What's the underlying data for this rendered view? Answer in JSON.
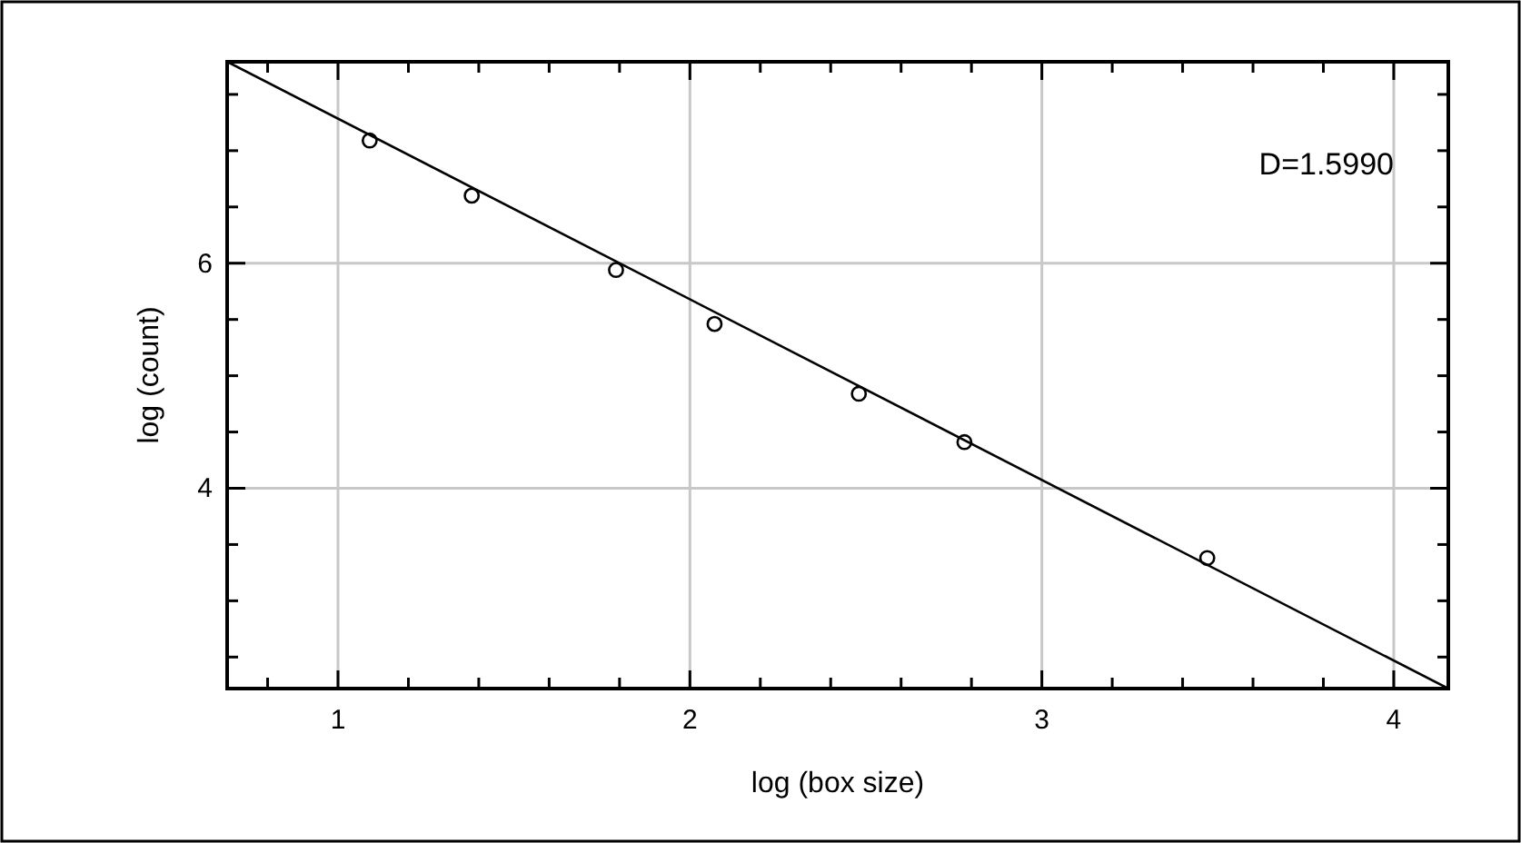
{
  "chart_data": {
    "type": "scatter",
    "xlabel": "log (box size)",
    "ylabel": "log (count)",
    "xlim": [
      0.685,
      4.155
    ],
    "ylim": [
      2.22,
      7.79
    ],
    "xticks": [
      {
        "value": 0.8,
        "label": null
      },
      1,
      {
        "value": 1.2,
        "label": null
      },
      {
        "value": 1.4,
        "label": null
      },
      {
        "value": 1.6,
        "label": null
      },
      {
        "value": 1.8,
        "label": null
      },
      2,
      {
        "value": 2.2,
        "label": null
      },
      {
        "value": 2.4,
        "label": null
      },
      {
        "value": 2.6,
        "label": null
      },
      {
        "value": 2.8,
        "label": null
      },
      3,
      {
        "value": 3.2,
        "label": null
      },
      {
        "value": 3.4,
        "label": null
      },
      {
        "value": 3.6,
        "label": null
      },
      {
        "value": 3.8,
        "label": null
      },
      4
    ],
    "yticks": [
      {
        "value": 2.5,
        "label": null
      },
      {
        "value": 3,
        "label": null
      },
      {
        "value": 3.5,
        "label": null
      },
      4,
      {
        "value": 4.5,
        "label": null
      },
      {
        "value": 5,
        "label": null
      },
      {
        "value": 5.5,
        "label": null
      },
      6,
      {
        "value": 6.5,
        "label": null
      },
      {
        "value": 7,
        "label": null
      },
      {
        "value": 7.5,
        "label": null
      }
    ],
    "grid": true,
    "annotations": [
      "D=1.5990"
    ],
    "series": [
      {
        "color": "#000000",
        "marker": "circle",
        "x": [
          1.09,
          1.38,
          1.79,
          2.07,
          2.48,
          2.78,
          3.47
        ],
        "values": [
          7.09,
          6.6,
          5.94,
          5.46,
          4.84,
          4.41,
          3.38
        ]
      },
      {
        "type": "line",
        "color": "#000000",
        "marker": "none",
        "line_style": "solid",
        "x": [
          0.685,
          4.155
        ],
        "values": [
          7.79,
          2.22
        ]
      }
    ]
  }
}
